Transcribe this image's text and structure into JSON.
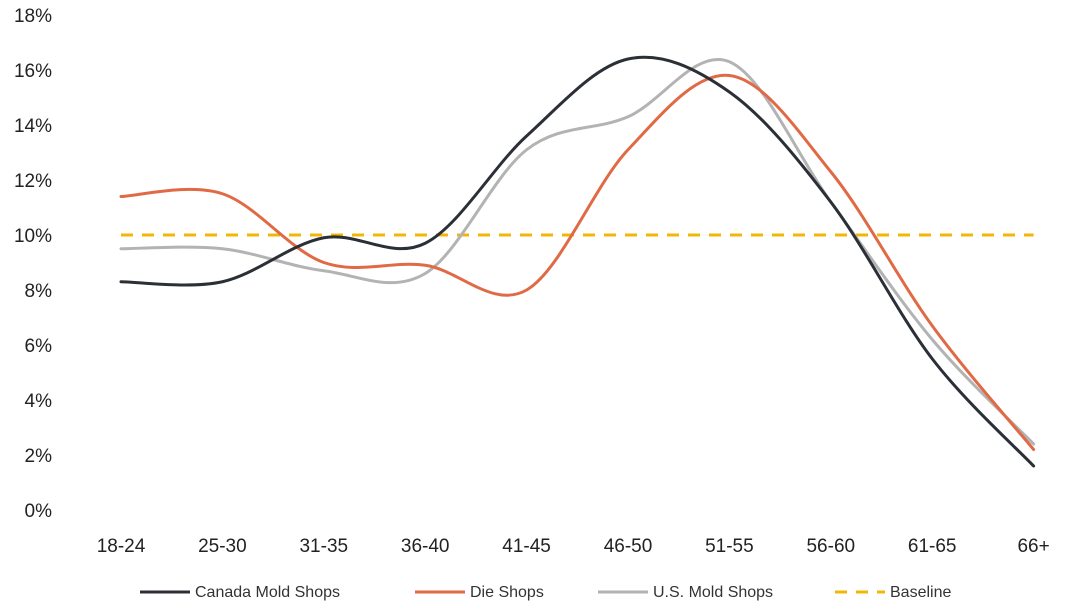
{
  "chart_data": {
    "type": "line",
    "title": "",
    "xlabel": "",
    "ylabel": "",
    "categories": [
      "18-24",
      "25-30",
      "31-35",
      "36-40",
      "41-45",
      "46-50",
      "51-55",
      "56-60",
      "61-65",
      "66+"
    ],
    "y_tick_labels": [
      "0%",
      "2%",
      "4%",
      "6%",
      "8%",
      "10%",
      "12%",
      "14%",
      "16%",
      "18%"
    ],
    "ylim": [
      0,
      18
    ],
    "y_unit": "%",
    "grid": false,
    "legend_position": "bottom",
    "series": [
      {
        "name": "Canada Mold Shops",
        "color": "#2b2f36",
        "dash": "solid",
        "values": [
          8.3,
          8.3,
          9.9,
          9.7,
          13.6,
          16.4,
          15.2,
          11.2,
          5.5,
          1.6
        ]
      },
      {
        "name": "Die Shops",
        "color": "#e06a45",
        "dash": "solid",
        "values": [
          11.4,
          11.5,
          9.0,
          8.9,
          8.0,
          13.1,
          15.8,
          12.3,
          6.7,
          2.2
        ]
      },
      {
        "name": "U.S. Mold Shops",
        "color": "#b3b3b3",
        "dash": "solid",
        "values": [
          9.5,
          9.5,
          8.7,
          8.6,
          13.1,
          14.3,
          16.3,
          11.2,
          6.2,
          2.4
        ]
      }
    ],
    "baseline": {
      "name": "Baseline",
      "value": 10,
      "color": "#f2b705",
      "dash": "dashed"
    }
  }
}
